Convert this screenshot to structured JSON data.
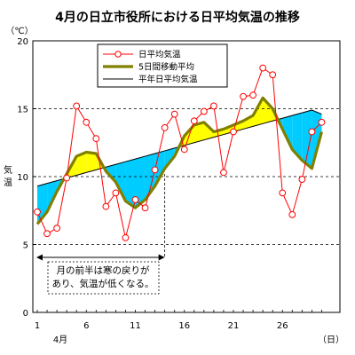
{
  "chart_data": {
    "type": "line",
    "title": "4月の日立市役所における日平均気温の推移",
    "ylabel": "気温",
    "yunit": "（℃）",
    "xunit": "（日）",
    "month_label": "4月",
    "ylim": [
      0,
      20
    ],
    "yticks": [
      0,
      5,
      10,
      15,
      20
    ],
    "xlim": [
      1,
      30
    ],
    "xticks": [
      1,
      6,
      11,
      16,
      21,
      26
    ],
    "grid": "dashed horizontal at 5, 10, 15",
    "legend_position": "top-center",
    "x": [
      1,
      2,
      3,
      4,
      5,
      6,
      7,
      8,
      9,
      10,
      11,
      12,
      13,
      14,
      15,
      16,
      17,
      18,
      19,
      20,
      21,
      22,
      23,
      24,
      25,
      26,
      27,
      28,
      29,
      30
    ],
    "series": [
      {
        "name": "日平均気温",
        "color": "#ff0000",
        "marker": "circle",
        "values": [
          7.4,
          5.8,
          6.2,
          9.9,
          15.2,
          14.0,
          12.8,
          7.8,
          8.8,
          5.5,
          8.3,
          7.7,
          10.5,
          13.6,
          14.6,
          12.0,
          14.1,
          14.8,
          15.2,
          10.3,
          13.3,
          15.9,
          16.0,
          18.0,
          17.5,
          8.8,
          7.2,
          9.8,
          13.3,
          14.0
        ]
      },
      {
        "name": "5日間移動平均",
        "color": "#808000",
        "values": [
          6.5,
          7.4,
          8.9,
          10.2,
          11.5,
          11.8,
          11.7,
          10.4,
          9.6,
          8.2,
          7.7,
          8.3,
          9.3,
          10.6,
          11.5,
          13.0,
          13.8,
          14.0,
          13.3,
          13.5,
          13.8,
          14.1,
          14.5,
          15.8,
          15.0,
          13.5,
          12.0,
          11.2,
          10.6,
          13.3
        ]
      },
      {
        "name": "平年日平均気温",
        "color": "#000000",
        "values": [
          9.3,
          9.5,
          9.7,
          9.9,
          10.1,
          10.3,
          10.5,
          10.7,
          10.9,
          11.1,
          11.3,
          11.5,
          11.7,
          11.9,
          12.1,
          12.3,
          12.5,
          12.7,
          12.9,
          13.1,
          13.3,
          13.5,
          13.7,
          13.9,
          14.1,
          14.3,
          14.5,
          14.7,
          14.9,
          14.6
        ]
      }
    ],
    "fill": {
      "above_color": "#ffff00",
      "below_color": "#00ccff"
    },
    "annotation": {
      "lines": [
        "月の前半は寒の戻りが",
        "あり、気温が低くなる。"
      ],
      "arrow_from_day": 1,
      "arrow_to_day": 14
    }
  }
}
